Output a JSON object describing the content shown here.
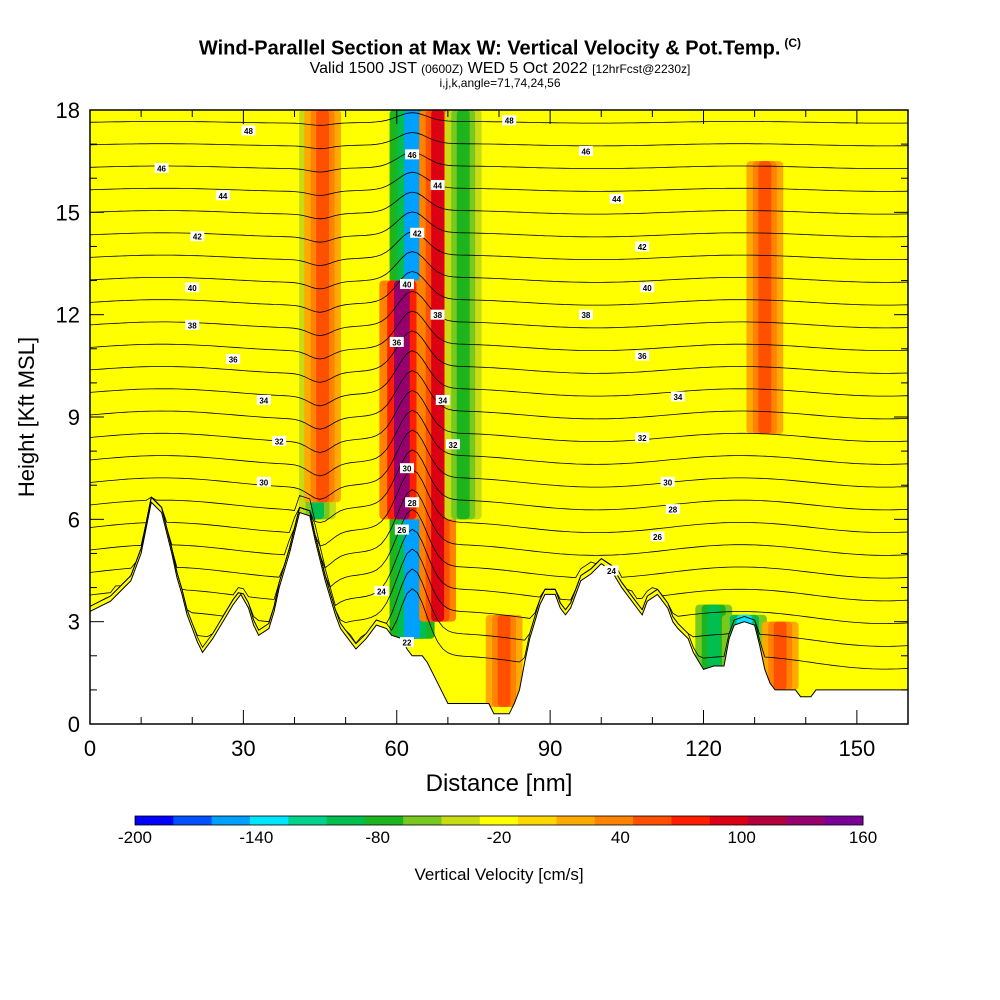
{
  "header": {
    "title": "Wind-Parallel Section at Max W: Vertical Velocity & Pot.Temp.",
    "copyright": "(C)",
    "valid_a": "Valid 1500 JST",
    "valid_z": "(0600Z)",
    "valid_b": "WED 5 Oct 2022",
    "forecast": "[12hrFcst@2230z]",
    "subtitle": "i,j,k,angle=71,74,24,56"
  },
  "chart_data": {
    "type": "heatmap",
    "title": "Wind-Parallel Section at Max W: Vertical Velocity & Pot.Temp.",
    "xlabel": "Distance [nm]",
    "ylabel": "Height [Kft MSL]",
    "xlim": [
      0,
      160
    ],
    "ylim": [
      0,
      18
    ],
    "xticks": [
      0,
      30,
      60,
      90,
      120,
      150
    ],
    "yticks": [
      0,
      3,
      6,
      9,
      12,
      15,
      18
    ],
    "colorbar": {
      "label": "Vertical Velocity [cm/s]",
      "min": -200,
      "max": 160,
      "step": 20,
      "tick_labels": [
        "-200",
        "-140",
        "-80",
        "-20",
        "40",
        "100",
        "160"
      ],
      "colors": [
        "#0000ff",
        "#0050ff",
        "#00a0ff",
        "#00e6ff",
        "#00d28c",
        "#00be50",
        "#1eb41e",
        "#78c81e",
        "#c8dc14",
        "#ffff00",
        "#ffd700",
        "#ffaa00",
        "#ff8200",
        "#ff5000",
        "#ff1e00",
        "#dc0014",
        "#b4003c",
        "#96006e",
        "#780096"
      ]
    },
    "w_features": [
      {
        "x": 44.5,
        "y_low": 6.0,
        "y_high": 18,
        "w_cm_s": -80
      },
      {
        "x": 45.5,
        "y_low": 6.5,
        "y_high": 18,
        "w_cm_s": 60
      },
      {
        "x": 63.0,
        "y_low": 2.5,
        "y_high": 18,
        "w_cm_s": -150
      },
      {
        "x": 61.0,
        "y_low": 6.0,
        "y_high": 13.0,
        "w_cm_s": 140
      },
      {
        "x": 68.0,
        "y_low": 3.0,
        "y_high": 18,
        "w_cm_s": 100
      },
      {
        "x": 73.0,
        "y_low": 6.0,
        "y_high": 18,
        "w_cm_s": -60
      },
      {
        "x": 81.0,
        "y_low": 0.5,
        "y_high": 3.2,
        "w_cm_s": 60
      },
      {
        "x": 122.0,
        "y_low": 1.6,
        "y_high": 3.5,
        "w_cm_s": -90
      },
      {
        "x": 128.0,
        "y_low": 1.2,
        "y_high": 3.2,
        "w_cm_s": -120
      },
      {
        "x": 132.0,
        "y_low": 8.5,
        "y_high": 16.5,
        "w_cm_s": 60
      },
      {
        "x": 135.0,
        "y_low": 1.0,
        "y_high": 3.0,
        "w_cm_s": 60
      }
    ],
    "theta_contour_labels": [
      {
        "text": "48",
        "x": 31,
        "y": 17.4
      },
      {
        "text": "46",
        "x": 14,
        "y": 16.3
      },
      {
        "text": "44",
        "x": 26,
        "y": 15.5
      },
      {
        "text": "42",
        "x": 21,
        "y": 14.3
      },
      {
        "text": "40",
        "x": 20,
        "y": 12.8
      },
      {
        "text": "38",
        "x": 20,
        "y": 11.7
      },
      {
        "text": "36",
        "x": 28,
        "y": 10.7
      },
      {
        "text": "34",
        "x": 34,
        "y": 9.5
      },
      {
        "text": "32",
        "x": 37,
        "y": 8.3
      },
      {
        "text": "30",
        "x": 34,
        "y": 7.1
      },
      {
        "text": "48",
        "x": 82,
        "y": 17.7
      },
      {
        "text": "46",
        "x": 63,
        "y": 16.7
      },
      {
        "text": "44",
        "x": 68,
        "y": 15.8
      },
      {
        "text": "42",
        "x": 64,
        "y": 14.4
      },
      {
        "text": "40",
        "x": 62,
        "y": 12.9
      },
      {
        "text": "38",
        "x": 68,
        "y": 12.0
      },
      {
        "text": "36",
        "x": 60,
        "y": 11.2
      },
      {
        "text": "34",
        "x": 69,
        "y": 9.5
      },
      {
        "text": "32",
        "x": 71,
        "y": 8.2
      },
      {
        "text": "30",
        "x": 62,
        "y": 7.5
      },
      {
        "text": "28",
        "x": 63,
        "y": 6.5
      },
      {
        "text": "26",
        "x": 61,
        "y": 5.7
      },
      {
        "text": "24",
        "x": 57,
        "y": 3.9
      },
      {
        "text": "22",
        "x": 62,
        "y": 2.4
      },
      {
        "text": "46",
        "x": 97,
        "y": 16.8
      },
      {
        "text": "44",
        "x": 103,
        "y": 15.4
      },
      {
        "text": "42",
        "x": 108,
        "y": 14.0
      },
      {
        "text": "40",
        "x": 109,
        "y": 12.8
      },
      {
        "text": "38",
        "x": 97,
        "y": 12.0
      },
      {
        "text": "36",
        "x": 108,
        "y": 10.8
      },
      {
        "text": "34",
        "x": 115,
        "y": 9.6
      },
      {
        "text": "32",
        "x": 108,
        "y": 8.4
      },
      {
        "text": "30",
        "x": 113,
        "y": 7.1
      },
      {
        "text": "28",
        "x": 114,
        "y": 6.3
      },
      {
        "text": "26",
        "x": 111,
        "y": 5.5
      },
      {
        "text": "24",
        "x": 102,
        "y": 4.5
      }
    ],
    "terrain_ft_kft": [
      [
        0,
        3.3
      ],
      [
        4,
        3.6
      ],
      [
        8,
        4.2
      ],
      [
        10,
        5.0
      ],
      [
        12,
        6.5
      ],
      [
        14,
        6.2
      ],
      [
        16,
        5.0
      ],
      [
        17,
        4.3
      ],
      [
        18,
        3.8
      ],
      [
        19,
        3.2
      ],
      [
        20,
        2.8
      ],
      [
        21,
        2.4
      ],
      [
        22,
        2.1
      ],
      [
        24,
        2.5
      ],
      [
        26,
        3.0
      ],
      [
        28,
        3.5
      ],
      [
        29.5,
        3.8
      ],
      [
        31,
        3.4
      ],
      [
        32,
        2.9
      ],
      [
        33,
        2.6
      ],
      [
        35,
        2.8
      ],
      [
        36,
        3.3
      ],
      [
        37,
        4.0
      ],
      [
        39,
        5.0
      ],
      [
        41,
        6.2
      ],
      [
        43,
        6.1
      ],
      [
        44,
        5.4
      ],
      [
        45,
        4.8
      ],
      [
        46,
        4.2
      ],
      [
        47,
        3.7
      ],
      [
        48,
        3.2
      ],
      [
        49,
        2.8
      ],
      [
        50,
        2.6
      ],
      [
        51,
        2.4
      ],
      [
        52,
        2.2
      ],
      [
        54,
        2.5
      ],
      [
        56,
        2.9
      ],
      [
        58,
        2.8
      ],
      [
        59,
        2.6
      ],
      [
        61,
        2.5
      ],
      [
        62,
        2.2
      ],
      [
        63,
        2.0
      ],
      [
        65,
        2.0
      ],
      [
        66,
        1.8
      ],
      [
        67,
        1.5
      ],
      [
        69,
        0.9
      ],
      [
        70,
        0.6
      ],
      [
        75,
        0.6
      ],
      [
        78,
        0.6
      ],
      [
        79,
        0.3
      ],
      [
        82,
        0.3
      ],
      [
        83,
        0.6
      ],
      [
        84,
        1.0
      ],
      [
        85,
        1.8
      ],
      [
        86,
        2.5
      ],
      [
        87,
        3.0
      ],
      [
        88,
        3.5
      ],
      [
        89,
        3.8
      ],
      [
        91,
        3.8
      ],
      [
        92,
        3.4
      ],
      [
        93,
        3.2
      ],
      [
        94,
        3.4
      ],
      [
        95,
        3.8
      ],
      [
        96,
        4.2
      ],
      [
        98,
        4.4
      ],
      [
        100,
        4.7
      ],
      [
        102,
        4.5
      ],
      [
        104,
        4.0
      ],
      [
        106,
        3.6
      ],
      [
        107,
        3.4
      ],
      [
        108,
        3.2
      ],
      [
        109,
        3.6
      ],
      [
        111,
        3.8
      ],
      [
        113,
        3.4
      ],
      [
        114,
        3.0
      ],
      [
        115,
        2.8
      ],
      [
        117,
        2.5
      ],
      [
        118,
        2.1
      ],
      [
        120,
        1.6
      ],
      [
        122,
        1.7
      ],
      [
        124,
        1.7
      ],
      [
        125,
        2.5
      ],
      [
        126,
        2.9
      ],
      [
        128,
        3.0
      ],
      [
        130,
        2.9
      ],
      [
        131,
        2.3
      ],
      [
        132,
        1.6
      ],
      [
        133,
        1.2
      ],
      [
        134,
        1.0
      ],
      [
        136,
        1.0
      ],
      [
        138,
        1.0
      ],
      [
        139,
        0.8
      ],
      [
        141,
        0.8
      ],
      [
        142,
        1.0
      ],
      [
        144,
        1.0
      ],
      [
        147,
        1.0
      ],
      [
        150,
        1.0
      ],
      [
        160,
        1.0
      ]
    ]
  }
}
